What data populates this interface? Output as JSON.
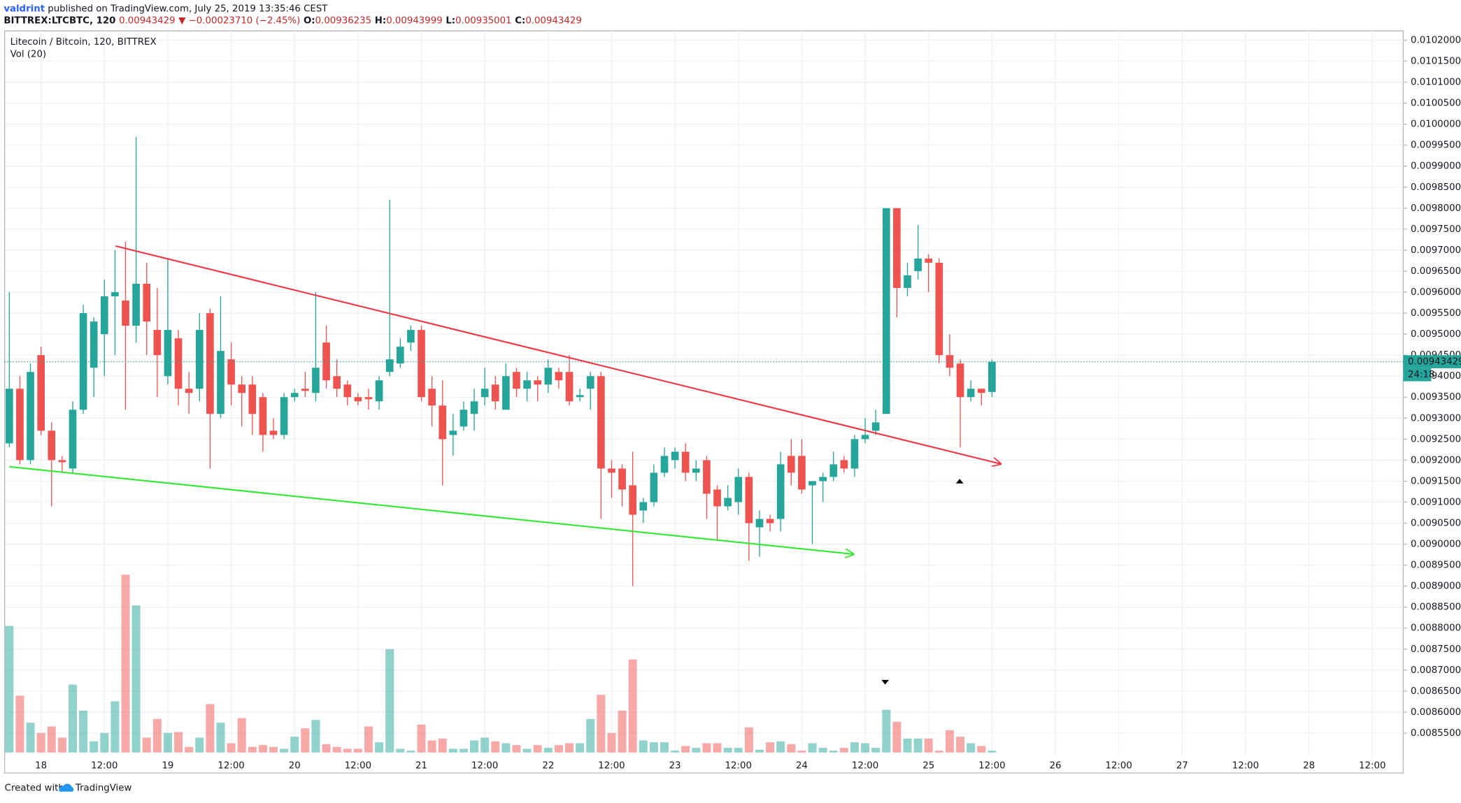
{
  "header": {
    "author": "valdrint",
    "published": "published on TradingView.com, July 25, 2019 13:35:46 CEST",
    "symbol": "BITTREX:LTCBTC, 120",
    "last": "0.00943429",
    "change": "▼ −0.00023710 (−2.45%)",
    "ohlc": [
      {
        "label": "O:",
        "value": "0.00936235"
      },
      {
        "label": "H:",
        "value": "0.00943999"
      },
      {
        "label": "L:",
        "value": "0.00935001"
      },
      {
        "label": "C:",
        "value": "0.00943429"
      }
    ]
  },
  "footer": {
    "created": "Created with",
    "brand": "TradingView"
  },
  "chart_data": {
    "type": "candlestick",
    "title": "Litecoin / Bitcoin, 120, BITTREX",
    "subtitle": "Vol (20)",
    "up_color": "#26a69a",
    "down_color": "#ef5350",
    "grid": true,
    "price_label": "0.00943429",
    "countdown": "24:18",
    "categories": [
      null,
      null,
      null,
      "18",
      null,
      null,
      null,
      null,
      null,
      "12:00",
      null,
      null,
      null,
      null,
      null,
      "19",
      null,
      null,
      null,
      null,
      null,
      "12:00",
      null,
      null,
      null,
      null,
      null,
      "20",
      null,
      null,
      null,
      null,
      null,
      "12:00",
      null,
      null,
      null,
      null,
      null,
      "21",
      null,
      null,
      null,
      null,
      null,
      "12:00",
      null,
      null,
      null,
      null,
      null,
      "22",
      null,
      null,
      null,
      null,
      null,
      "12:00",
      null,
      null,
      null,
      null,
      null,
      "23",
      null,
      null,
      null,
      null,
      null,
      "12:00",
      null,
      null,
      null,
      null,
      null,
      "24",
      null,
      null,
      null,
      null,
      null,
      "12:00",
      null,
      null,
      null,
      null,
      null,
      "25",
      null,
      null,
      null,
      null,
      null,
      "12:00",
      null,
      null,
      null,
      null,
      null,
      "26",
      null,
      null,
      null,
      null,
      null,
      "12:00",
      null,
      null,
      null,
      null,
      null,
      "27",
      null,
      null,
      null,
      null,
      null,
      "12:00",
      null,
      null,
      null,
      null,
      null,
      "28",
      null,
      null,
      null,
      null,
      null,
      "12:00",
      null,
      null
    ],
    "open": [
      0.00924,
      0.00937,
      0.0092,
      0.00945,
      0.00927,
      0.0092,
      0.00918,
      0.00932,
      0.00942,
      0.0095,
      0.00959,
      0.00958,
      0.00952,
      0.00962,
      0.00951,
      0.0094,
      0.00949,
      0.00937,
      0.00937,
      0.00955,
      0.00931,
      0.00944,
      0.00938,
      0.00938,
      0.00935,
      0.00927,
      0.00926,
      0.00935,
      0.00937,
      0.00936,
      0.00948,
      0.0094,
      0.00938,
      0.00935,
      0.00935,
      0.00934,
      0.00941,
      0.00943,
      0.00948,
      0.00951,
      0.00937,
      0.00933,
      0.00926,
      0.00928,
      0.00931,
      0.00935,
      0.00938,
      0.00932,
      0.00941,
      0.00937,
      0.00939,
      0.00938,
      0.00941,
      0.00941,
      0.00935,
      0.00937,
      0.0094,
      0.00918,
      0.00918,
      0.00914,
      0.00908,
      0.0091,
      0.00917,
      0.0092,
      0.00922,
      0.00917,
      0.0092,
      0.00913,
      0.00909,
      0.0091,
      0.00916,
      0.00904,
      0.00906,
      0.00906,
      0.00921,
      0.00921,
      0.00914,
      0.00915,
      0.00916,
      0.0092,
      0.00918,
      0.00925,
      0.00927,
      0.00931,
      0.0098,
      0.00961,
      0.00965,
      0.00968,
      0.00967,
      0.00945,
      0.00943,
      0.00935,
      0.00937,
      0.00936235,
      null,
      null,
      null,
      null,
      null,
      null,
      null,
      null,
      null,
      null,
      null,
      null,
      null,
      null,
      null,
      null,
      null,
      null,
      null,
      null,
      null,
      null,
      null,
      null,
      null,
      null,
      null,
      null,
      null,
      null,
      null,
      null,
      null,
      null,
      null,
      null,
      null,
      null
    ],
    "high": [
      0.0096,
      0.0094,
      0.00943,
      0.00947,
      0.00929,
      0.00921,
      0.00934,
      0.00957,
      0.00954,
      0.00963,
      0.0097,
      0.00972,
      0.00997,
      0.00967,
      0.00961,
      0.00968,
      0.00951,
      0.00941,
      0.00955,
      0.00956,
      0.00959,
      0.00948,
      0.0094,
      0.0094,
      0.00936,
      0.0093,
      0.00936,
      0.00937,
      0.00941,
      0.0096,
      0.00952,
      0.00944,
      0.00939,
      0.00936,
      0.00937,
      0.0094,
      0.00982,
      0.00949,
      0.00952,
      0.00952,
      0.0094,
      0.00939,
      0.00931,
      0.00934,
      0.00937,
      0.00942,
      0.0094,
      0.00943,
      0.00942,
      0.00941,
      0.0094,
      0.00944,
      0.00942,
      0.00945,
      0.00937,
      0.00941,
      0.00941,
      0.0092,
      0.00919,
      0.00922,
      0.00911,
      0.00919,
      0.00923,
      0.00923,
      0.00924,
      0.0092,
      0.00921,
      0.00914,
      0.00914,
      0.00918,
      0.00917,
      0.00908,
      0.00907,
      0.00922,
      0.00925,
      0.00925,
      0.00915,
      0.00917,
      0.00922,
      0.00921,
      0.00926,
      0.0093,
      0.00932,
      0.0098,
      0.0098,
      0.00967,
      0.00976,
      0.00969,
      0.00968,
      0.0095,
      0.00944,
      0.00939,
      0.00937,
      0.00943999,
      null,
      null,
      null,
      null,
      null,
      null,
      null,
      null,
      null,
      null,
      null,
      null,
      null,
      null,
      null,
      null,
      null,
      null,
      null,
      null,
      null,
      null,
      null,
      null,
      null,
      null,
      null,
      null,
      null,
      null,
      null,
      null,
      null,
      null,
      null,
      null,
      null,
      null
    ],
    "low": [
      0.00923,
      0.00919,
      0.00919,
      0.00926,
      0.00909,
      0.00917,
      0.00917,
      0.00931,
      0.00935,
      0.0094,
      0.00945,
      0.00932,
      0.00948,
      0.00945,
      0.00935,
      0.00938,
      0.00933,
      0.00931,
      0.00934,
      0.00918,
      0.0093,
      0.00933,
      0.00928,
      0.00926,
      0.00922,
      0.00925,
      0.00925,
      0.00934,
      0.00935,
      0.00934,
      0.00937,
      0.00935,
      0.00933,
      0.00933,
      0.00932,
      0.00932,
      0.0094,
      0.00942,
      0.00946,
      0.00934,
      0.00928,
      0.00914,
      0.00921,
      0.00927,
      0.00927,
      0.00933,
      0.00932,
      0.00932,
      0.00935,
      0.00934,
      0.00934,
      0.00936,
      0.00937,
      0.00933,
      0.00934,
      0.00932,
      0.00906,
      0.00911,
      0.00909,
      0.0089,
      0.00905,
      0.00909,
      0.00916,
      0.00918,
      0.00915,
      0.00915,
      0.00906,
      0.00901,
      0.00908,
      0.00907,
      0.00896,
      0.00897,
      0.00903,
      0.00903,
      0.00914,
      0.00912,
      0.009,
      0.0091,
      0.00915,
      0.00917,
      0.00916,
      0.00924,
      0.00926,
      0.00931,
      0.00954,
      0.00959,
      0.00963,
      0.0096,
      0.00943,
      0.0094,
      0.00923,
      0.00934,
      0.00933,
      0.00935001,
      null,
      null,
      null,
      null,
      null,
      null,
      null,
      null,
      null,
      null,
      null,
      null,
      null,
      null,
      null,
      null,
      null,
      null,
      null,
      null,
      null,
      null,
      null,
      null,
      null,
      null,
      null,
      null,
      null,
      null,
      null,
      null,
      null,
      null,
      null,
      null,
      null,
      null
    ],
    "close": [
      0.00937,
      0.0092,
      0.00941,
      0.00927,
      0.0092,
      0.009195,
      0.00932,
      0.00955,
      0.00953,
      0.00959,
      0.0096,
      0.00952,
      0.00962,
      0.00953,
      0.00945,
      0.00951,
      0.00937,
      0.00936,
      0.00951,
      0.00931,
      0.00946,
      0.00938,
      0.00936,
      0.00931,
      0.00926,
      0.00926,
      0.00935,
      0.00936,
      0.009365,
      0.00942,
      0.00939,
      0.00937,
      0.00935,
      0.00934,
      0.009345,
      0.00939,
      0.00944,
      0.00947,
      0.00951,
      0.00935,
      0.00933,
      0.00925,
      0.00927,
      0.00932,
      0.00934,
      0.00937,
      0.00934,
      0.0094,
      0.00937,
      0.00939,
      0.00938,
      0.00942,
      0.00939,
      0.00934,
      0.009355,
      0.0094,
      0.00918,
      0.00917,
      0.00913,
      0.00907,
      0.0091,
      0.00917,
      0.00921,
      0.00922,
      0.00917,
      0.00918,
      0.00912,
      0.00909,
      0.00911,
      0.00916,
      0.00905,
      0.00906,
      0.00905,
      0.00919,
      0.00917,
      0.00913,
      0.00915,
      0.00916,
      0.00919,
      0.00918,
      0.00925,
      0.00926,
      0.00929,
      0.0098,
      0.00961,
      0.00964,
      0.00968,
      0.00967,
      0.00945,
      0.00942,
      0.00935,
      0.00937,
      0.00936,
      0.00943429,
      null,
      null,
      null,
      null,
      null,
      null,
      null,
      null,
      null,
      null,
      null,
      null,
      null,
      null,
      null,
      null,
      null,
      null,
      null,
      null,
      null,
      null,
      null,
      null,
      null,
      null,
      null,
      null,
      null,
      null,
      null,
      null,
      null,
      null,
      null,
      null,
      null,
      null
    ],
    "volume": [
      136,
      61,
      32,
      21,
      28,
      16,
      73,
      45,
      12,
      21,
      55,
      191,
      158,
      16,
      36,
      21,
      22,
      6,
      16,
      52,
      32,
      10,
      37,
      6,
      8,
      6,
      4,
      17,
      26,
      35,
      9,
      6,
      4,
      4,
      28,
      11,
      111,
      4,
      2,
      30,
      13,
      15,
      4,
      4,
      13,
      16,
      12,
      10,
      8,
      4,
      8,
      5,
      8,
      10,
      10,
      36,
      62,
      21,
      45,
      100,
      13,
      11,
      11,
      2,
      7,
      5,
      10,
      10,
      5,
      5,
      27,
      3,
      11,
      12,
      9,
      2,
      10,
      5,
      2,
      5,
      11,
      10,
      5,
      46,
      33,
      15,
      15,
      15,
      2,
      24,
      17,
      10,
      7,
      2,
      null,
      null,
      null,
      null,
      null,
      null,
      null,
      null,
      null,
      null,
      null,
      null,
      null,
      null,
      null,
      null,
      null,
      null,
      null,
      null,
      null,
      null,
      null,
      null,
      null,
      null,
      null,
      null,
      null,
      null,
      null,
      null,
      null,
      null,
      null,
      null,
      null,
      null
    ],
    "ylim": [
      0.008455,
      0.010222
    ],
    "yticks": [
      {
        "value": 0.0102,
        "label": "0.01020000"
      },
      {
        "value": 0.01015,
        "label": "0.01015000"
      },
      {
        "value": 0.0101,
        "label": "0.01010000"
      },
      {
        "value": 0.01005,
        "label": "0.01005000"
      },
      {
        "value": 0.01,
        "label": "0.01000000"
      },
      {
        "value": 0.00995,
        "label": "0.00995000"
      },
      {
        "value": 0.0099,
        "label": "0.00990000"
      },
      {
        "value": 0.00985,
        "label": "0.00985000"
      },
      {
        "value": 0.0098,
        "label": "0.00980000"
      },
      {
        "value": 0.00975,
        "label": "0.00975000"
      },
      {
        "value": 0.0097,
        "label": "0.00970000"
      },
      {
        "value": 0.00965,
        "label": "0.00965000"
      },
      {
        "value": 0.0096,
        "label": "0.00960000"
      },
      {
        "value": 0.00955,
        "label": "0.00955000"
      },
      {
        "value": 0.0095,
        "label": "0.00950000"
      },
      {
        "value": 0.00945,
        "label": "0.00945000"
      },
      {
        "value": 0.0094,
        "label": "0.00940000"
      },
      {
        "value": 0.00935,
        "label": "0.00935000"
      },
      {
        "value": 0.0093,
        "label": "0.00930000"
      },
      {
        "value": 0.00925,
        "label": "0.00925000"
      },
      {
        "value": 0.0092,
        "label": "0.00920000"
      },
      {
        "value": 0.00915,
        "label": "0.00915000"
      },
      {
        "value": 0.0091,
        "label": "0.00910000"
      },
      {
        "value": 0.00905,
        "label": "0.00905000"
      },
      {
        "value": 0.009,
        "label": "0.00900000"
      },
      {
        "value": 0.00895,
        "label": "0.00895000"
      },
      {
        "value": 0.0089,
        "label": "0.00890000"
      },
      {
        "value": 0.00885,
        "label": "0.00885000"
      },
      {
        "value": 0.0088,
        "label": "0.00880000"
      },
      {
        "value": 0.00875,
        "label": "0.00875000"
      },
      {
        "value": 0.0087,
        "label": "0.00870000"
      },
      {
        "value": 0.00865,
        "label": "0.00865000"
      },
      {
        "value": 0.0086,
        "label": "0.00860000"
      },
      {
        "value": 0.00855,
        "label": "0.00855000"
      }
    ]
  }
}
